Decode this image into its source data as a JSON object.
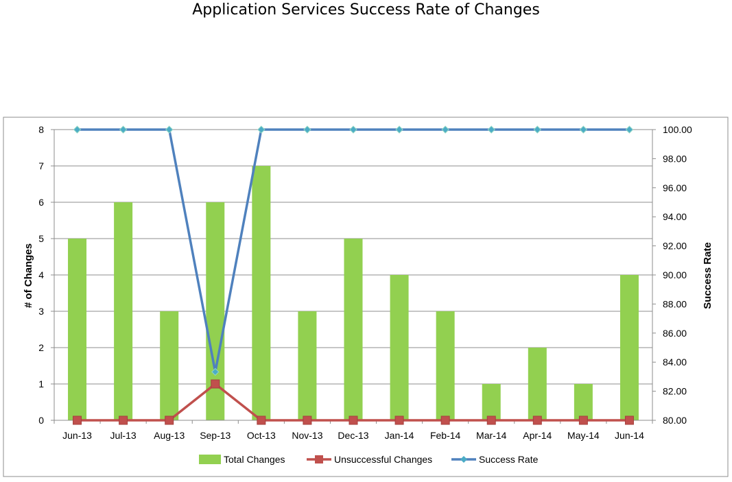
{
  "chart_data": {
    "type": "bar",
    "title": "Application Services Success Rate of Changes",
    "categories": [
      "Jun-13",
      "Jul-13",
      "Aug-13",
      "Sep-13",
      "Oct-13",
      "Nov-13",
      "Dec-13",
      "Jan-14",
      "Feb-14",
      "Mar-14",
      "Apr-14",
      "May-14",
      "Jun-14"
    ],
    "ylabel": "# of Changes",
    "y2label": "Success Rate",
    "ylim": [
      0,
      8
    ],
    "y2lim": [
      80,
      100
    ],
    "yticks": [
      "0",
      "1",
      "2",
      "3",
      "4",
      "5",
      "6",
      "7",
      "8"
    ],
    "y2ticks": [
      "80.00",
      "82.00",
      "84.00",
      "86.00",
      "88.00",
      "90.00",
      "92.00",
      "94.00",
      "96.00",
      "98.00",
      "100.00"
    ],
    "grid": true,
    "legend_position": "bottom",
    "series": [
      {
        "name": "Total Changes",
        "type": "bar",
        "axis": "left",
        "color": "#92D050",
        "values": [
          5,
          6,
          3,
          6,
          7,
          3,
          5,
          4,
          3,
          1,
          2,
          1,
          4
        ]
      },
      {
        "name": "Unsuccessful Changes",
        "type": "line",
        "axis": "left",
        "color": "#C0504D",
        "marker": "square",
        "values": [
          0,
          0,
          0,
          1,
          0,
          0,
          0,
          0,
          0,
          0,
          0,
          0,
          0
        ]
      },
      {
        "name": "Success Rate",
        "type": "line",
        "axis": "right",
        "color": "#4F81BD",
        "marker": "diamond",
        "values": [
          100,
          100,
          100,
          83.33,
          100,
          100,
          100,
          100,
          100,
          100,
          100,
          100,
          100
        ]
      }
    ]
  }
}
